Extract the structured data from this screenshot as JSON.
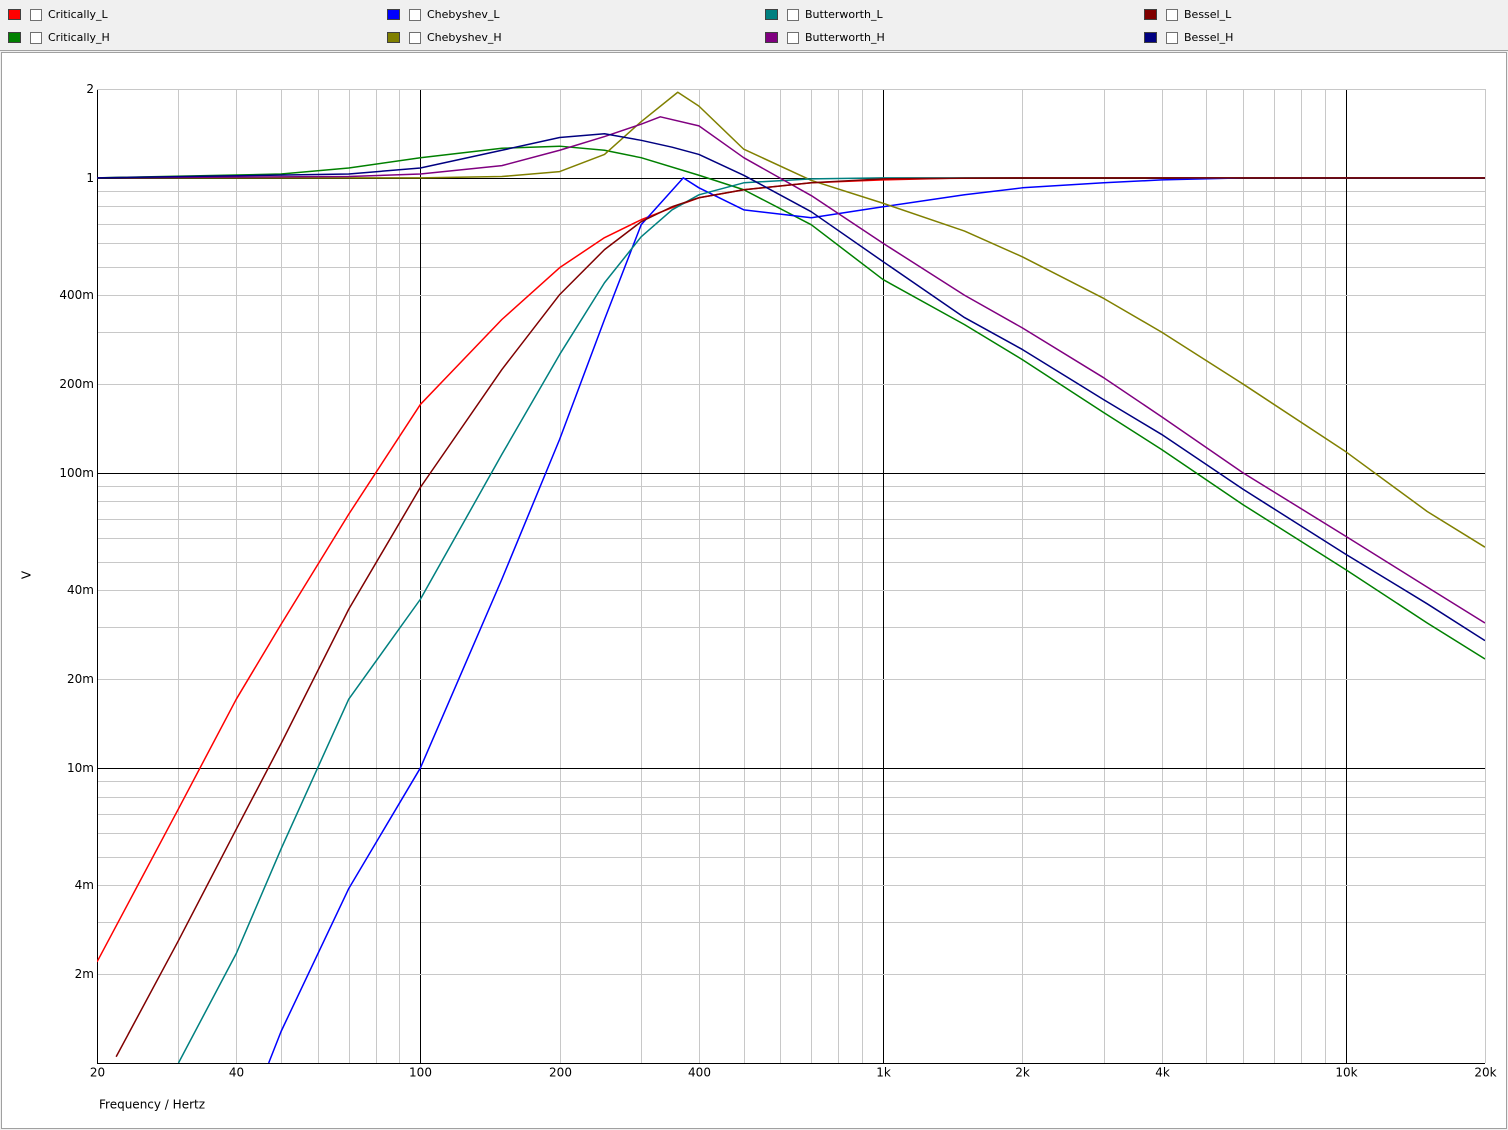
{
  "chart_data": {
    "type": "line",
    "x_label": "Frequency / Hertz",
    "y_label": "V",
    "xscale": "log",
    "yscale": "log",
    "grid": true,
    "minor_grid": true,
    "legend": "top",
    "xlim": [
      20,
      20000
    ],
    "ylim": [
      0.001,
      2
    ],
    "xticks": [
      20,
      40,
      100,
      200,
      400,
      {
        "value": 1000,
        "label": "1k"
      },
      {
        "value": 2000,
        "label": "2k"
      },
      {
        "value": 4000,
        "label": "4k"
      },
      {
        "value": 10000,
        "label": "10k"
      },
      {
        "value": 20000,
        "label": "20k"
      }
    ],
    "yticks": [
      2,
      1,
      {
        "value": 0.4,
        "label": "400m"
      },
      {
        "value": 0.2,
        "label": "200m"
      },
      {
        "value": 0.1,
        "label": "100m"
      },
      {
        "value": 0.04,
        "label": "40m"
      },
      {
        "value": 0.02,
        "label": "20m"
      },
      {
        "value": 0.01,
        "label": "10m"
      },
      {
        "value": 0.004,
        "label": "4m"
      },
      {
        "value": 0.002,
        "label": "2m"
      }
    ],
    "series": [
      {
        "name": "Critically_L",
        "color": "#ff0000",
        "x": [
          20,
          30,
          40,
          50,
          70,
          100,
          150,
          200,
          250,
          300,
          350,
          400,
          500,
          700,
          1000,
          1500,
          2000,
          4000,
          10000,
          20000
        ],
        "values": [
          0.0022,
          0.00727,
          0.0171,
          0.0307,
          0.0724,
          0.1706,
          0.331,
          0.496,
          0.627,
          0.721,
          0.792,
          0.856,
          0.911,
          0.962,
          0.984,
          1,
          1,
          1,
          1,
          1
        ]
      },
      {
        "name": "Critically_H",
        "color": "#008000",
        "x": [
          20,
          50,
          70,
          100,
          150,
          200,
          250,
          300,
          400,
          500,
          700,
          1000,
          1500,
          2000,
          3000,
          4000,
          6000,
          10000,
          15000,
          20000
        ],
        "values": [
          1,
          1.03,
          1.08,
          1.17,
          1.26,
          1.28,
          1.24,
          1.17,
          1.02,
          0.911,
          0.693,
          0.452,
          0.318,
          0.242,
          0.16,
          0.12,
          0.078,
          0.047,
          0.031,
          0.0234
        ]
      },
      {
        "name": "Chebyshev_L",
        "color": "#0000ff",
        "x": [
          47,
          50,
          70,
          100,
          150,
          200,
          250,
          300,
          370,
          400,
          500,
          700,
          1000,
          1500,
          2000,
          3000,
          4000,
          6000,
          10000,
          20000
        ],
        "values": [
          0.001,
          0.00128,
          0.0039,
          0.01,
          0.0436,
          0.13,
          0.331,
          0.693,
          1.0,
          0.925,
          0.779,
          0.732,
          0.798,
          0.876,
          0.925,
          0.962,
          0.984,
          1,
          1,
          1
        ]
      },
      {
        "name": "Chebyshev_H",
        "color": "#808000",
        "x": [
          20,
          100,
          150,
          200,
          250,
          300,
          360,
          400,
          500,
          700,
          1000,
          1500,
          2000,
          3000,
          4000,
          6000,
          10000,
          15000,
          20000
        ],
        "values": [
          1,
          1,
          1.01,
          1.05,
          1.2,
          1.55,
          1.95,
          1.75,
          1.25,
          0.98,
          0.82,
          0.66,
          0.54,
          0.39,
          0.3,
          0.2,
          0.118,
          0.074,
          0.056
        ]
      },
      {
        "name": "Butterworth_L",
        "color": "#008080",
        "x": [
          30,
          40,
          50,
          70,
          100,
          150,
          200,
          250,
          300,
          350,
          400,
          500,
          700,
          1000,
          4000,
          20000
        ],
        "values": [
          0.001,
          0.00235,
          0.00532,
          0.0171,
          0.0373,
          0.1155,
          0.252,
          0.441,
          0.631,
          0.779,
          0.876,
          0.962,
          0.992,
          1,
          1,
          1
        ]
      },
      {
        "name": "Butterworth_H",
        "color": "#800080",
        "x": [
          20,
          70,
          100,
          150,
          200,
          250,
          300,
          330,
          400,
          500,
          700,
          1000,
          1500,
          2000,
          3000,
          4000,
          6000,
          10000,
          15000,
          20000
        ],
        "values": [
          1,
          1.01,
          1.03,
          1.1,
          1.24,
          1.38,
          1.52,
          1.61,
          1.5,
          1.17,
          0.87,
          0.6,
          0.4,
          0.31,
          0.21,
          0.155,
          0.1,
          0.061,
          0.041,
          0.031
        ]
      },
      {
        "name": "Bessel_L",
        "color": "#800000",
        "x": [
          22,
          30,
          40,
          50,
          70,
          100,
          150,
          200,
          250,
          300,
          350,
          400,
          500,
          700,
          1000,
          2000,
          20000
        ],
        "values": [
          0.00105,
          0.0026,
          0.0062,
          0.0121,
          0.0345,
          0.0893,
          0.224,
          0.402,
          0.571,
          0.71,
          0.798,
          0.856,
          0.911,
          0.962,
          0.992,
          1,
          1
        ]
      },
      {
        "name": "Bessel_H",
        "color": "#000080",
        "x": [
          20,
          70,
          100,
          150,
          200,
          250,
          300,
          350,
          400,
          500,
          700,
          1000,
          1500,
          2000,
          3000,
          4000,
          6000,
          10000,
          15000,
          20000
        ],
        "values": [
          1,
          1.03,
          1.08,
          1.24,
          1.37,
          1.41,
          1.34,
          1.27,
          1.2,
          1.02,
          0.767,
          0.52,
          0.336,
          0.262,
          0.177,
          0.135,
          0.088,
          0.053,
          0.036,
          0.027
        ]
      }
    ]
  }
}
